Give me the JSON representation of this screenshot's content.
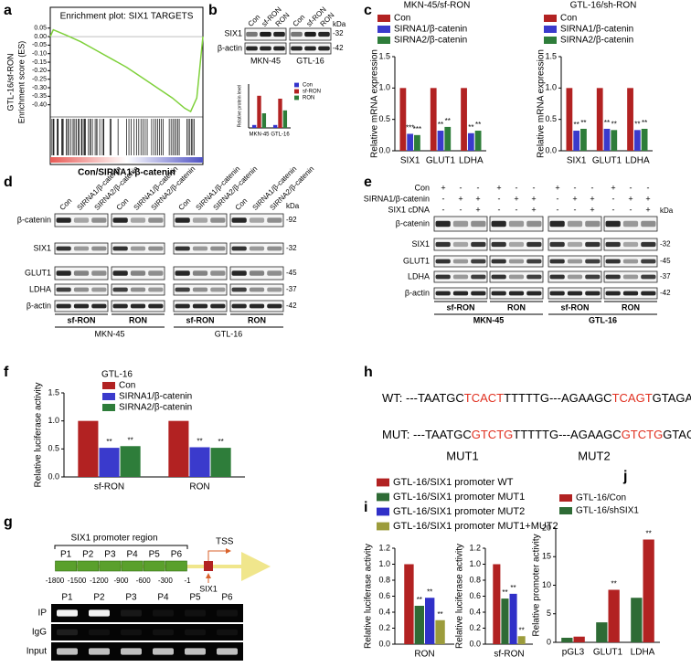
{
  "panels": {
    "a": {
      "label": "a",
      "title": "Enrichment plot: SIX1 TARGETS",
      "ylabel": [
        "GTL-16/sf-RON",
        "Enrichment score (ES)"
      ],
      "xlabel": "Con/SIRNA1-β-catenin",
      "ylim": [
        -0.45,
        0.07
      ],
      "yticks": [
        0.05,
        {
          "value": 0,
          "label": "0.00"
        },
        -0.05,
        {
          "value": -0.1,
          "label": "-0.10"
        },
        -0.15,
        {
          "value": -0.2,
          "label": "-0.20"
        },
        -0.25,
        {
          "value": -0.3,
          "label": "-0.30"
        },
        -0.35,
        {
          "value": -0.4,
          "label": "-0.40"
        }
      ],
      "es": {
        "x": [
          0,
          0.02,
          0.1,
          0.2,
          0.3,
          0.4,
          0.5,
          0.6,
          0.7,
          0.8,
          0.88,
          0.92,
          0.96,
          1
        ],
        "y": [
          0,
          0.04,
          0.01,
          -0.03,
          -0.08,
          -0.13,
          -0.18,
          -0.24,
          -0.3,
          -0.36,
          -0.42,
          -0.44,
          -0.36,
          0
        ]
      },
      "color": "#7fd13b"
    },
    "b": {
      "label": "b",
      "kda": "kDa",
      "blocks": [
        {
          "lanes": [
            "Con",
            "sf-RON",
            "RON"
          ],
          "cell": "MKN-45"
        },
        {
          "lanes": [
            "Con",
            "sf-RON",
            "RON"
          ],
          "cell": "GTL-16"
        }
      ],
      "rows": [
        {
          "name": "SIX1",
          "kda": "-32"
        },
        {
          "name": "β-actin",
          "kda": "-42"
        }
      ],
      "chart": {
        "ylabel": "Relative protein level",
        "series": [
          {
            "name": "Con",
            "color": "#3333cc"
          },
          {
            "name": "sf-RON",
            "color": "#b22222"
          },
          {
            "name": "RON",
            "color": "#2e7d3a"
          }
        ],
        "categories": [
          "MKN-45",
          "GTL-16"
        ],
        "values": [
          [
            1,
            1
          ],
          [
            11,
            10
          ],
          [
            5,
            6
          ]
        ],
        "ylim": [
          0,
          15
        ]
      }
    },
    "c": {
      "label": "c",
      "charts": [
        {
          "title": "MKN-45/sf-RON",
          "ylabel": "Relative mRNA expression",
          "series": [
            {
              "name": "Con",
              "color": "#b22222"
            },
            {
              "name": "SIRNA1/β-catenin",
              "color": "#3a3acc"
            },
            {
              "name": "SIRNA2/β-catenin",
              "color": "#2e7d3a"
            }
          ],
          "categories": [
            "SIX1",
            "GLUT1",
            "LDHA"
          ],
          "values": [
            [
              1,
              1,
              1
            ],
            [
              0.27,
              0.32,
              0.28
            ],
            [
              0.25,
              0.38,
              0.32
            ]
          ],
          "stars": [
            [
              null,
              null,
              null
            ],
            [
              "***",
              "**",
              "**"
            ],
            [
              "***",
              "**",
              "**"
            ]
          ],
          "ylim": [
            0,
            1.5
          ],
          "yticks": [
            {
              "value": 0,
              "label": "0.0"
            },
            0.5,
            {
              "value": 1,
              "label": "1.0"
            },
            1.5
          ]
        },
        {
          "title": "GTL-16/sh-RON",
          "ylabel": "Relative mRNA expression",
          "series": [
            {
              "name": "Con",
              "color": "#b22222"
            },
            {
              "name": "SIRNA1/β-catenin",
              "color": "#3a3acc"
            },
            {
              "name": "SIRNA2/β-catenin",
              "color": "#2e7d3a"
            }
          ],
          "categories": [
            "SIX1",
            "GLUT1",
            "LDHA"
          ],
          "values": [
            [
              1,
              1,
              1
            ],
            [
              0.32,
              0.35,
              0.33
            ],
            [
              0.35,
              0.33,
              0.35
            ]
          ],
          "stars": [
            [
              null,
              null,
              null
            ],
            [
              "**",
              "**",
              "**"
            ],
            [
              "**",
              "**",
              "**"
            ]
          ],
          "ylim": [
            0,
            1.5
          ],
          "yticks": [
            {
              "value": 0,
              "label": "0.0"
            },
            0.5,
            {
              "value": 1,
              "label": "1.0"
            },
            1.5
          ]
        }
      ]
    },
    "d": {
      "label": "d",
      "kda": "kDa",
      "blocks": [
        {
          "lanes": [
            "Con",
            "SIRNA1/β-catenin",
            "SIRNA2/β-catenin"
          ],
          "group": "sf-RON"
        },
        {
          "lanes": [
            "Con",
            "SIRNA1/β-catenin",
            "SIRNA2/β-catenin"
          ],
          "group": "RON"
        },
        {
          "lanes": [
            "Con",
            "SIRNA1/β-catenin",
            "SIRNA2/β-catenin"
          ],
          "group": "sf-RON"
        },
        {
          "lanes": [
            "Con",
            "SIRNA1/β-catenin",
            "SIRNA2/β-catenin"
          ],
          "group": "RON"
        }
      ],
      "rows": [
        {
          "name": "β-catenin",
          "kda": "-92"
        },
        {
          "name": "SIX1",
          "kda": "-32"
        },
        {
          "name": "GLUT1",
          "kda": "-45"
        },
        {
          "name": "LDHA",
          "kda": "-37"
        },
        {
          "name": "β-actin",
          "kda": "-42"
        }
      ],
      "cells": [
        "MKN-45",
        "GTL-16"
      ]
    },
    "e": {
      "label": "e",
      "kda": "kDa",
      "conditions": [
        {
          "name": "Con",
          "signs": [
            "+",
            "-",
            "-",
            "+",
            "-",
            "-",
            "+",
            "-",
            "-",
            "+",
            "-",
            "-"
          ]
        },
        {
          "name": "SIRNA1/β-catenin",
          "signs": [
            "-",
            "+",
            "+",
            "-",
            "+",
            "+",
            "-",
            "+",
            "+",
            "-",
            "+",
            "+"
          ]
        },
        {
          "name": "SIX1 cDNA",
          "signs": [
            "-",
            "-",
            "+",
            "-",
            "-",
            "+",
            "-",
            "-",
            "+",
            "-",
            "-",
            "+"
          ]
        }
      ],
      "blocks": [
        {
          "group": "sf-RON"
        },
        {
          "group": "RON"
        },
        {
          "group": "sf-RON"
        },
        {
          "group": "RON"
        }
      ],
      "rows": [
        {
          "name": "β-catenin"
        },
        {
          "name": "SIX1",
          "kda": "-32"
        },
        {
          "name": "GLUT1",
          "kda": "-45"
        },
        {
          "name": "LDHA",
          "kda": "-37"
        },
        {
          "name": "β-actin",
          "kda": "-42"
        }
      ],
      "cells": [
        "MKN-45",
        "GTL-16"
      ]
    },
    "f": {
      "label": "f",
      "chart": {
        "title": "GTL-16",
        "ylabel": "Relative luciferase activity",
        "series": [
          {
            "name": "Con",
            "color": "#b22222"
          },
          {
            "name": "SIRNA1/β-catenin",
            "color": "#3a3acc"
          },
          {
            "name": "SIRNA2/β-catenin",
            "color": "#2e7d3a"
          }
        ],
        "categories": [
          "sf-RON",
          "RON"
        ],
        "values": [
          [
            1,
            1
          ],
          [
            0.52,
            0.53
          ],
          [
            0.55,
            0.52
          ]
        ],
        "stars": [
          [
            null,
            null
          ],
          [
            "**",
            "**"
          ],
          [
            "**",
            "**"
          ]
        ],
        "ylim": [
          0,
          1.5
        ],
        "yticks": [
          {
            "value": 0,
            "label": "0.0"
          },
          0.5,
          {
            "value": 1,
            "label": "1.0"
          },
          1.5
        ]
      }
    },
    "g": {
      "label": "g",
      "region": "SIX1 promoter region",
      "fragments": [
        "P1",
        "P2",
        "P3",
        "P4",
        "P5",
        "P6"
      ],
      "positions": [
        -1800,
        -1500,
        -1200,
        -900,
        -600,
        -300,
        -1
      ],
      "tss": "TSS",
      "gene": "SIX1",
      "gel": {
        "lanes": [
          "P1",
          "P2",
          "P3",
          "P4",
          "P5",
          "P6"
        ],
        "rows": [
          "IP",
          "IgG",
          "Input"
        ]
      }
    },
    "h": {
      "label": "h",
      "wt": {
        "label": "WT:",
        "parts": [
          "---TAATGC",
          "TCACT",
          "TTTTTG---AGAAGC",
          "TCAGT",
          "GTAGAA---"
        ]
      },
      "mut": {
        "label": "MUT:",
        "parts": [
          "---TAATGC",
          "GTCTG",
          "TTTTTG---AGAAGC",
          "GTCTG",
          "GTAGAA---"
        ]
      },
      "sites": [
        "MUT1",
        "MUT2"
      ]
    },
    "i": {
      "label": "i",
      "series": [
        {
          "name": "GTL-16/SIX1 promoter WT",
          "color": "#b22222"
        },
        {
          "name": "GTL-16/SIX1 promoter MUT1",
          "color": "#2e6b35"
        },
        {
          "name": "GTL-16/SIX1 promoter MUT2",
          "color": "#3030c8"
        },
        {
          "name": "GTL-16/SIX1 promoter MUT1+MUT2",
          "color": "#9c9c3c"
        }
      ],
      "charts": [
        {
          "ylabel": "Relative luciferase activity",
          "categories": [
            "RON"
          ],
          "values": [
            [
              1
            ],
            [
              0.48
            ],
            [
              0.58
            ],
            [
              0.3
            ]
          ],
          "stars": [
            [
              null
            ],
            [
              "**"
            ],
            [
              "**"
            ],
            [
              "**"
            ]
          ],
          "ylim": [
            0,
            1.2
          ],
          "yticks": [
            {
              "value": 0,
              "label": "0.0"
            },
            0.2,
            0.4,
            0.6,
            0.8,
            {
              "value": 1,
              "label": "1.0"
            },
            1.2
          ]
        },
        {
          "ylabel": "Relative luciferase activity",
          "categories": [
            "sf-RON"
          ],
          "values": [
            [
              1
            ],
            [
              0.57
            ],
            [
              0.63
            ],
            [
              0.1
            ]
          ],
          "stars": [
            [
              null
            ],
            [
              "**"
            ],
            [
              "**"
            ],
            [
              "**"
            ]
          ],
          "ylim": [
            0,
            1.2
          ],
          "yticks": [
            {
              "value": 0,
              "label": "0.0"
            },
            0.2,
            0.4,
            0.6,
            0.8,
            {
              "value": 1,
              "label": "1.0"
            },
            1.2
          ]
        }
      ]
    },
    "j": {
      "label": "j",
      "chart": {
        "ylabel": "Relative promoter activity",
        "series": [
          {
            "name": "GTL-16/Con",
            "color": "#b22222"
          },
          {
            "name": "GTL-16/shSIX1",
            "color": "#2e6b35"
          }
        ],
        "categories": [
          "pGL3",
          "GLUT1",
          "LDHA"
        ],
        "values": [
          [
            1,
            9.2,
            18
          ],
          [
            0.8,
            3.5,
            7.8
          ]
        ],
        "stars": [
          [
            null,
            "**",
            "**"
          ],
          [
            null,
            null,
            null
          ]
        ],
        "ylim": [
          0,
          20
        ],
        "yticks": [
          0,
          5,
          10,
          15,
          20
        ]
      }
    }
  }
}
